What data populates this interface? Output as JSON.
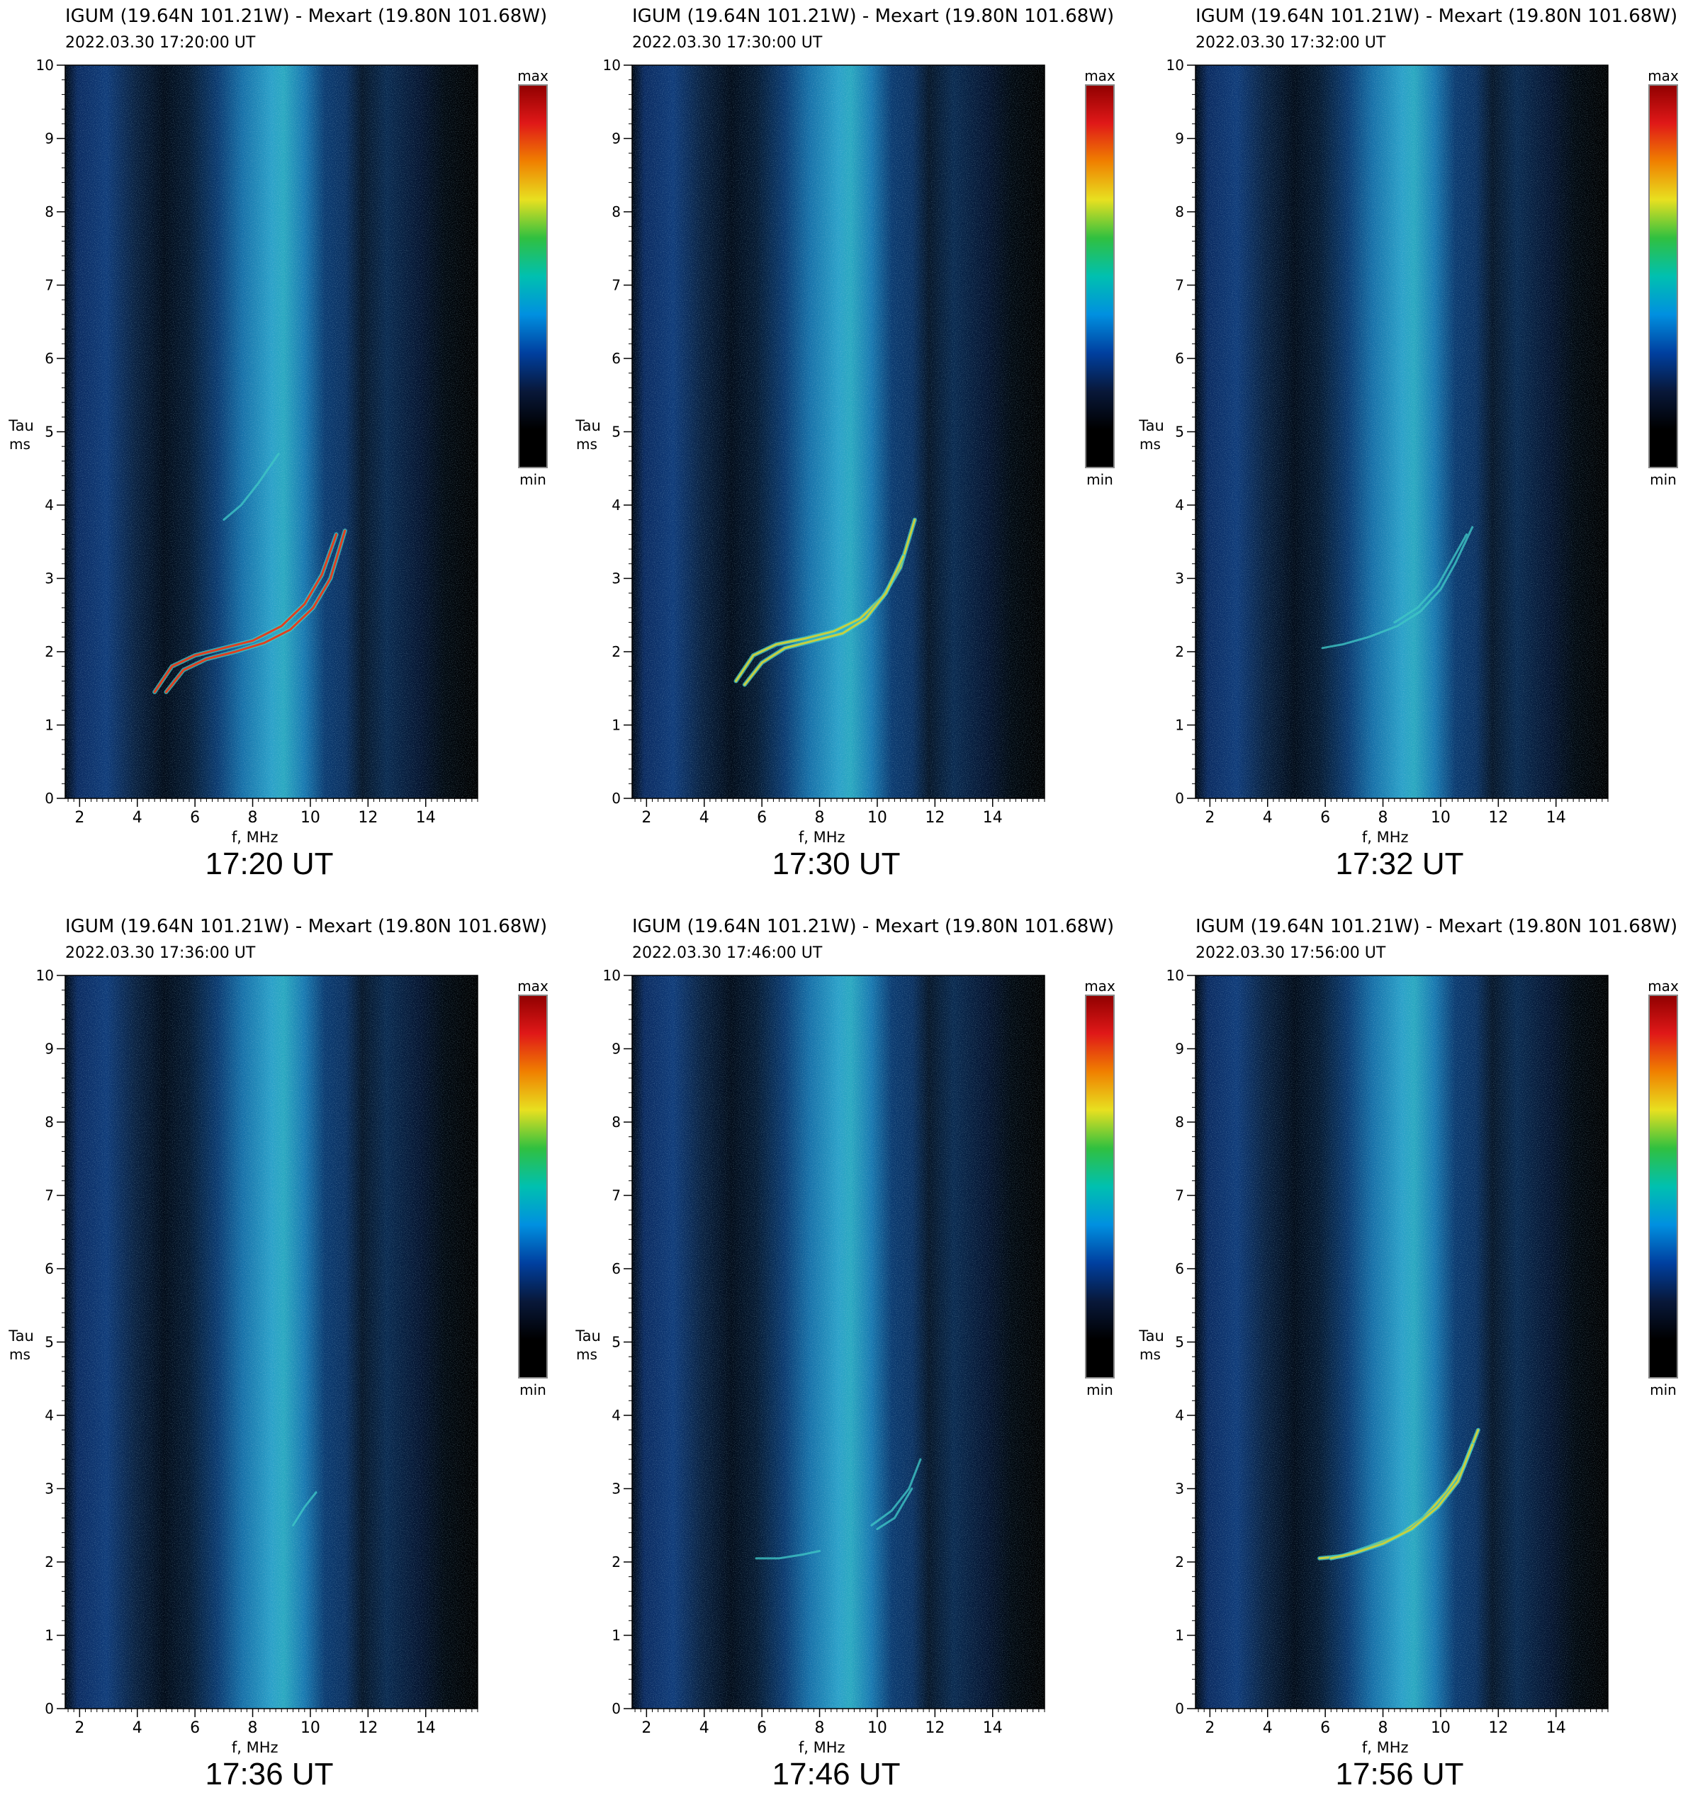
{
  "labels": {
    "ylabel_1": "Tau",
    "ylabel_2": "ms",
    "xlabel": "f, MHz",
    "colorbar_max": "max",
    "colorbar_min": "min"
  },
  "colors": {
    "background_noise": "#0a2a55",
    "band_bright": "#2aa0c8",
    "trace_low": "#3fc6c6",
    "trace_mid": "#c8d040",
    "trace_high": "#e04020"
  },
  "colormap": [
    "#000000",
    "#000000",
    "#08183a",
    "#0040a0",
    "#0090e0",
    "#00c0b0",
    "#30c040",
    "#e8e020",
    "#f08000",
    "#e01818",
    "#900000"
  ],
  "chart_data": [
    {
      "type": "heatmap",
      "title": "IGUM (19.64N 101.21W)  -  Mexart (19.80N 101.68W)",
      "subtitle": "2022.03.30    17:20:00  UT",
      "caption": "17:20 UT",
      "xlabel": "f, MHz",
      "ylabel": "Tau ms",
      "xlim": [
        1.5,
        15.8
      ],
      "ylim": [
        0,
        10
      ],
      "xticks": [
        2,
        4,
        6,
        8,
        10,
        12,
        14
      ],
      "yticks": [
        0,
        1,
        2,
        3,
        4,
        5,
        6,
        7,
        8,
        9,
        10
      ],
      "colorbar": [
        "min",
        "max"
      ],
      "traces": [
        {
          "f": [
            4.6,
            5.2,
            6.0,
            7.0,
            8.0,
            9.0,
            9.8,
            10.4,
            10.9
          ],
          "tau": [
            1.45,
            1.8,
            1.95,
            2.05,
            2.15,
            2.35,
            2.65,
            3.05,
            3.6
          ],
          "intensity": "high"
        },
        {
          "f": [
            5.0,
            5.6,
            6.4,
            7.4,
            8.4,
            9.3,
            10.1,
            10.7,
            11.2
          ],
          "tau": [
            1.45,
            1.75,
            1.9,
            2.0,
            2.12,
            2.3,
            2.6,
            3.0,
            3.65
          ],
          "intensity": "high"
        },
        {
          "f": [
            7.0,
            7.6,
            8.2,
            8.9
          ],
          "tau": [
            3.8,
            4.0,
            4.3,
            4.7
          ],
          "intensity": "low"
        }
      ]
    },
    {
      "type": "heatmap",
      "title": "IGUM (19.64N 101.21W)  -  Mexart (19.80N 101.68W)",
      "subtitle": "2022.03.30    17:30:00  UT",
      "caption": "17:30 UT",
      "xlabel": "f, MHz",
      "ylabel": "Tau ms",
      "xlim": [
        1.5,
        15.8
      ],
      "ylim": [
        0,
        10
      ],
      "xticks": [
        2,
        4,
        6,
        8,
        10,
        12,
        14
      ],
      "yticks": [
        0,
        1,
        2,
        3,
        4,
        5,
        6,
        7,
        8,
        9,
        10
      ],
      "colorbar": [
        "min",
        "max"
      ],
      "traces": [
        {
          "f": [
            5.1,
            5.7,
            6.5,
            7.5,
            8.5,
            9.4,
            10.2,
            10.8,
            11.3
          ],
          "tau": [
            1.6,
            1.95,
            2.1,
            2.18,
            2.28,
            2.45,
            2.75,
            3.15,
            3.8
          ],
          "intensity": "mid"
        },
        {
          "f": [
            5.4,
            6.0,
            6.8,
            7.8,
            8.8,
            9.6,
            10.3,
            10.9
          ],
          "tau": [
            1.55,
            1.85,
            2.05,
            2.15,
            2.25,
            2.45,
            2.8,
            3.3
          ],
          "intensity": "mid"
        }
      ]
    },
    {
      "type": "heatmap",
      "title": "IGUM (19.64N 101.21W)  -  Mexart (19.80N 101.68W)",
      "subtitle": "2022.03.30    17:32:00  UT",
      "caption": "17:32 UT",
      "xlabel": "f, MHz",
      "ylabel": "Tau ms",
      "xlim": [
        1.5,
        15.8
      ],
      "ylim": [
        0,
        10
      ],
      "xticks": [
        2,
        4,
        6,
        8,
        10,
        12,
        14
      ],
      "yticks": [
        0,
        1,
        2,
        3,
        4,
        5,
        6,
        7,
        8,
        9,
        10
      ],
      "colorbar": [
        "min",
        "max"
      ],
      "traces": [
        {
          "f": [
            5.9,
            6.6,
            7.5,
            8.5,
            9.3,
            10.0,
            10.5,
            11.1
          ],
          "tau": [
            2.05,
            2.1,
            2.2,
            2.35,
            2.55,
            2.85,
            3.2,
            3.7
          ],
          "intensity": "low"
        },
        {
          "f": [
            8.4,
            9.2,
            9.9,
            10.4,
            10.9
          ],
          "tau": [
            2.4,
            2.6,
            2.9,
            3.25,
            3.6
          ],
          "intensity": "low"
        }
      ]
    },
    {
      "type": "heatmap",
      "title": "IGUM (19.64N 101.21W)  -  Mexart (19.80N 101.68W)",
      "subtitle": "2022.03.30    17:36:00  UT",
      "caption": "17:36 UT",
      "xlabel": "f, MHz",
      "ylabel": "Tau ms",
      "xlim": [
        1.5,
        15.8
      ],
      "ylim": [
        0,
        10
      ],
      "xticks": [
        2,
        4,
        6,
        8,
        10,
        12,
        14
      ],
      "yticks": [
        0,
        1,
        2,
        3,
        4,
        5,
        6,
        7,
        8,
        9,
        10
      ],
      "colorbar": [
        "min",
        "max"
      ],
      "traces": [
        {
          "f": [
            9.4,
            9.8,
            10.2
          ],
          "tau": [
            2.5,
            2.75,
            2.95
          ],
          "intensity": "low"
        }
      ]
    },
    {
      "type": "heatmap",
      "title": "IGUM (19.64N 101.21W)  -  Mexart (19.80N 101.68W)",
      "subtitle": "2022.03.30    17:46:00  UT",
      "caption": "17:46 UT",
      "xlabel": "f, MHz",
      "ylabel": "Tau ms",
      "xlim": [
        1.5,
        15.8
      ],
      "ylim": [
        0,
        10
      ],
      "xticks": [
        2,
        4,
        6,
        8,
        10,
        12,
        14
      ],
      "yticks": [
        0,
        1,
        2,
        3,
        4,
        5,
        6,
        7,
        8,
        9,
        10
      ],
      "colorbar": [
        "min",
        "max"
      ],
      "traces": [
        {
          "f": [
            5.8,
            6.6,
            7.4,
            8.0
          ],
          "tau": [
            2.05,
            2.05,
            2.1,
            2.15
          ],
          "intensity": "low"
        },
        {
          "f": [
            9.8,
            10.5,
            11.1,
            11.5
          ],
          "tau": [
            2.5,
            2.7,
            3.0,
            3.4
          ],
          "intensity": "low"
        },
        {
          "f": [
            10.0,
            10.6,
            11.2
          ],
          "tau": [
            2.45,
            2.6,
            3.0
          ],
          "intensity": "low"
        }
      ]
    },
    {
      "type": "heatmap",
      "title": "IGUM (19.64N 101.21W)  -  Mexart (19.80N 101.68W)",
      "subtitle": "2022.03.30    17:56:00  UT",
      "caption": "17:56 UT",
      "xlabel": "f, MHz",
      "ylabel": "Tau ms",
      "xlim": [
        1.5,
        15.8
      ],
      "ylim": [
        0,
        10
      ],
      "xticks": [
        2,
        4,
        6,
        8,
        10,
        12,
        14
      ],
      "yticks": [
        0,
        1,
        2,
        3,
        4,
        5,
        6,
        7,
        8,
        9,
        10
      ],
      "colorbar": [
        "min",
        "max"
      ],
      "traces": [
        {
          "f": [
            5.8,
            6.6,
            7.5,
            8.5,
            9.4,
            10.2,
            10.8,
            11.3
          ],
          "tau": [
            2.05,
            2.08,
            2.2,
            2.35,
            2.6,
            2.95,
            3.3,
            3.8
          ],
          "intensity": "mid"
        },
        {
          "f": [
            6.2,
            7.0,
            8.0,
            9.0,
            9.9,
            10.6,
            11.1
          ],
          "tau": [
            2.05,
            2.12,
            2.25,
            2.45,
            2.75,
            3.1,
            3.6
          ],
          "intensity": "mid"
        }
      ]
    }
  ]
}
